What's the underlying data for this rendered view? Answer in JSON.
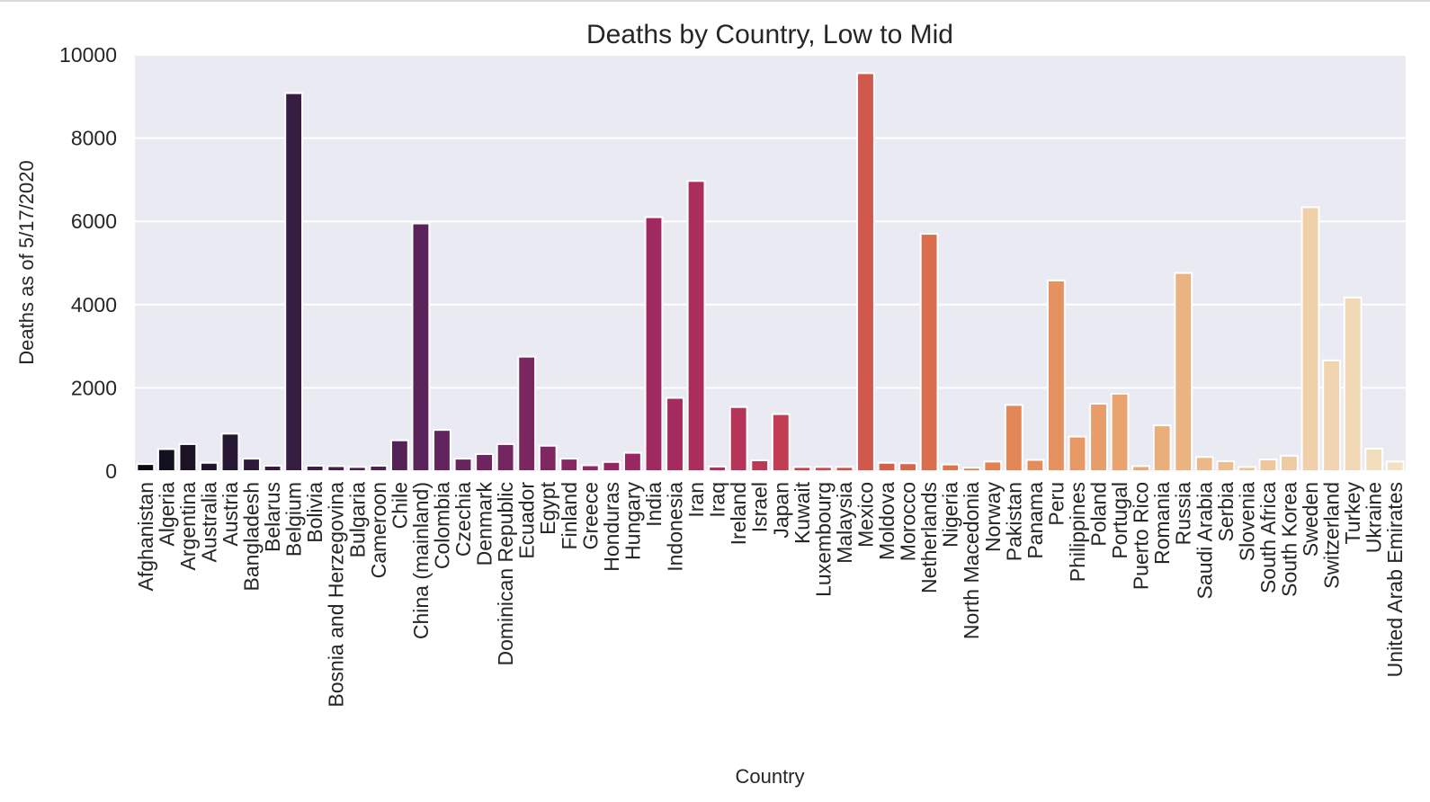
{
  "chart_data": {
    "type": "bar",
    "title": "Deaths by Country, Low to Mid",
    "xlabel": "Country",
    "ylabel": "Deaths as of 5/17/2020",
    "ylim": [
      0,
      10000
    ],
    "yticks": [
      0,
      2000,
      4000,
      6000,
      8000,
      10000
    ],
    "grid": true,
    "legend": "none",
    "categories": [
      "Afghanistan",
      "Algeria",
      "Argentina",
      "Australia",
      "Austria",
      "Bangladesh",
      "Belarus",
      "Belgium",
      "Bolivia",
      "Bosnia and Herzegovina",
      "Bulgaria",
      "Cameroon",
      "Chile",
      "China (mainland)",
      "Colombia",
      "Czechia",
      "Denmark",
      "Dominican Republic",
      "Ecuador",
      "Egypt",
      "Finland",
      "Greece",
      "Honduras",
      "Hungary",
      "India",
      "Indonesia",
      "Iran",
      "Iraq",
      "Ireland",
      "Israel",
      "Japan",
      "Kuwait",
      "Luxembourg",
      "Malaysia",
      "Mexico",
      "Moldova",
      "Morocco",
      "Netherlands",
      "Nigeria",
      "North Macedonia",
      "Norway",
      "Pakistan",
      "Panama",
      "Peru",
      "Philippines",
      "Poland",
      "Portugal",
      "Puerto Rico",
      "Romania",
      "Russia",
      "Saudi Arabia",
      "Serbia",
      "Slovenia",
      "South Africa",
      "South Korea",
      "Sweden",
      "Switzerland",
      "Turkey",
      "Ukraine",
      "United Arab Emirates"
    ],
    "values": [
      170,
      530,
      650,
      200,
      900,
      300,
      130,
      9080,
      130,
      120,
      100,
      130,
      740,
      5950,
      990,
      300,
      410,
      650,
      2750,
      610,
      300,
      140,
      220,
      440,
      6100,
      1760,
      6970,
      110,
      1540,
      260,
      1370,
      100,
      100,
      100,
      9560,
      200,
      190,
      5700,
      160,
      80,
      230,
      1590,
      270,
      4580,
      830,
      1620,
      1860,
      120,
      1100,
      4760,
      340,
      240,
      100,
      280,
      370,
      6340,
      2660,
      4170,
      540,
      230
    ],
    "colors": [
      "#0c0a16",
      "#14101f",
      "#1b1325",
      "#20152c",
      "#261833",
      "#2c1a38",
      "#331c3e",
      "#381d43",
      "#3e1e49",
      "#441f4e",
      "#4a2051",
      "#502254",
      "#552257",
      "#5b2359",
      "#61245c",
      "#67255d",
      "#6e255f",
      "#742660",
      "#7a2660",
      "#802761",
      "#872762",
      "#8d2761",
      "#932761",
      "#9a2860",
      "#a0295f",
      "#a52b5e",
      "#ab2d5c",
      "#b0305a",
      "#b63458",
      "#bb3856",
      "#c03d54",
      "#c44351",
      "#c8494f",
      "#cc504d",
      "#d0584c",
      "#d45f4b",
      "#d7664b",
      "#da6d4c",
      "#dd744e",
      "#df7a51",
      "#e18154",
      "#e38758",
      "#e48c5c",
      "#e59260",
      "#e69865",
      "#e79e6a",
      "#e8a36f",
      "#e9a875",
      "#eaae7b",
      "#ebb381",
      "#ecb888",
      "#ecbd8f",
      "#edc295",
      "#eec79c",
      "#eeccA3",
      "#efd0a9",
      "#f0d5b0",
      "#f1d9b7",
      "#f2ddbd",
      "#f3e1c4"
    ]
  }
}
